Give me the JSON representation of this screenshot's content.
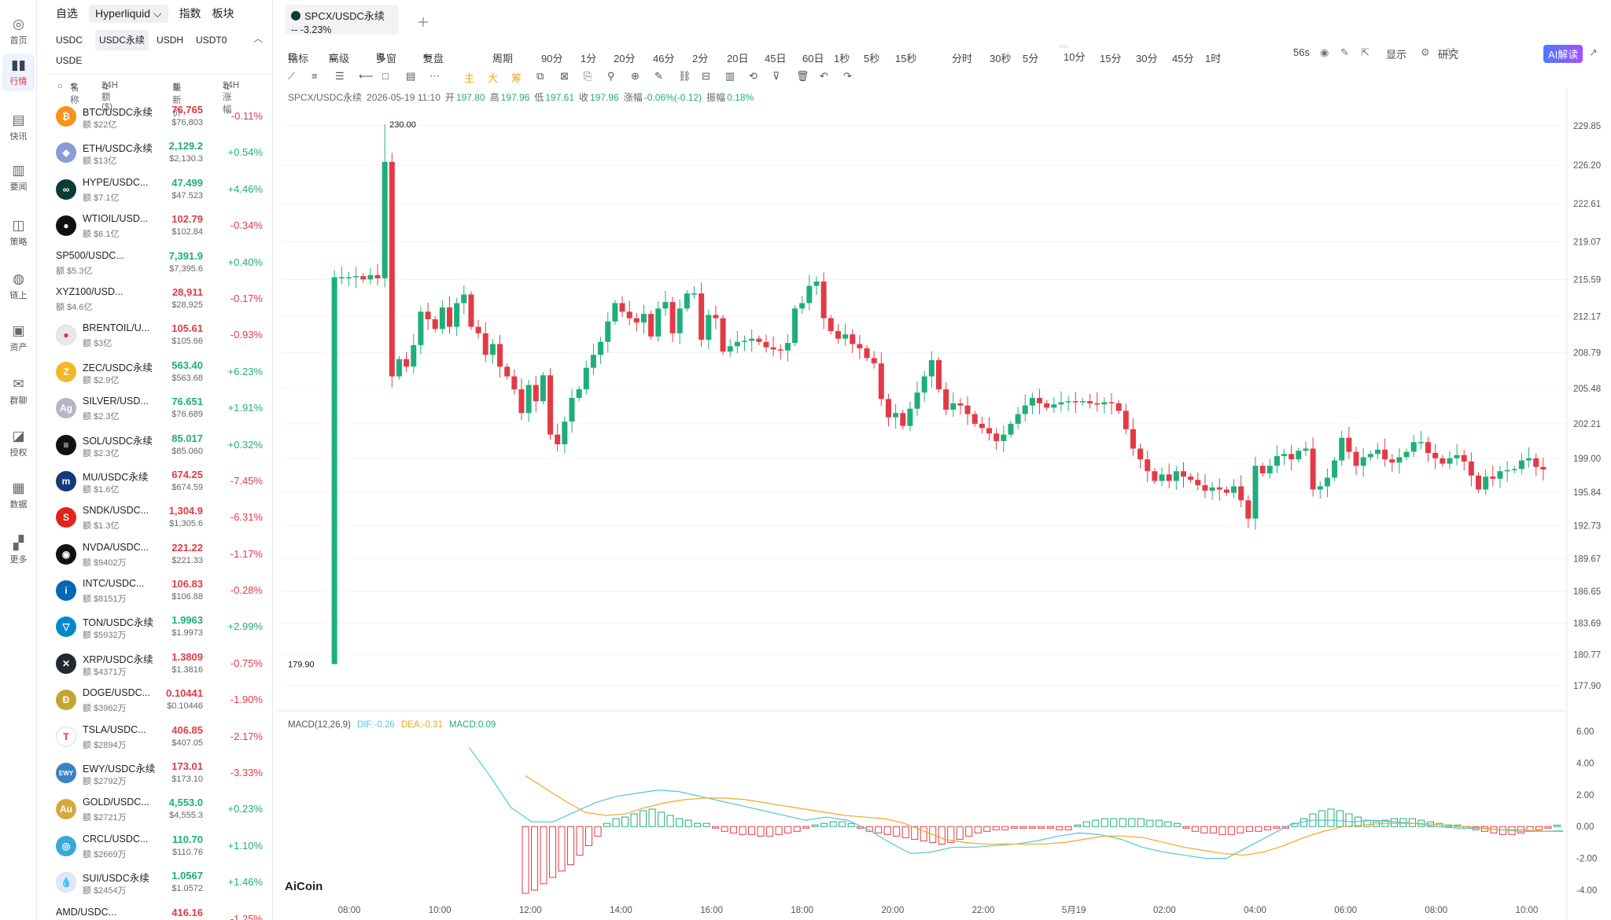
{
  "nav": [
    {
      "icon": "home-icon",
      "label": "首页"
    },
    {
      "icon": "market-icon",
      "label": "行情"
    },
    {
      "icon": "flash-icon",
      "label": "快讯"
    },
    {
      "icon": "news-icon",
      "label": "要闻"
    },
    {
      "icon": "strategy-icon",
      "label": "策略"
    },
    {
      "icon": "onchain-icon",
      "label": "链上"
    },
    {
      "icon": "wallet-icon",
      "label": "资产"
    },
    {
      "icon": "chat-icon",
      "label": "群聊"
    },
    {
      "icon": "auth-icon",
      "label": "授权"
    },
    {
      "icon": "data-icon",
      "label": "数据"
    },
    {
      "icon": "more-icon",
      "label": "更多"
    }
  ],
  "watchlist": {
    "tabs": [
      "自选",
      "Hyperliquid",
      "指数",
      "板块"
    ],
    "sub_tabs": [
      "USDC",
      "USDC永续",
      "USDH",
      "USDT0",
      "USDE"
    ],
    "headers": {
      "name": "名称",
      "vol": "24H额($)",
      "price": "最新价",
      "change": "24H涨幅"
    },
    "rows": [
      {
        "name": "BTC/USDC永续",
        "vol": "额 $22亿",
        "price": "76,765",
        "usd": "$76,803",
        "chg": "-0.11%",
        "color": "#f7931a",
        "glyph": "₿"
      },
      {
        "name": "ETH/USDC永续",
        "vol": "额 $13亿",
        "price": "2,129.2",
        "usd": "$2,130.3",
        "chg": "+0.54%",
        "color": "#8a9bd6",
        "glyph": "◆"
      },
      {
        "name": "HYPE/USDC...",
        "vol": "额 $7.1亿",
        "price": "47.499",
        "usd": "$47.523",
        "chg": "+4.46%",
        "color": "#0c3b35",
        "glyph": "∞"
      },
      {
        "name": "WTIOIL/USD...",
        "vol": "额 $6.1亿",
        "price": "102.79",
        "usd": "$102.84",
        "chg": "-0.34%",
        "color": "#111",
        "glyph": "●"
      },
      {
        "name": "SP500/USDC...",
        "vol": "额 $5.3亿",
        "price": "7,391.9",
        "usd": "$7,395.6",
        "chg": "+0.40%",
        "color": "",
        "glyph": ""
      },
      {
        "name": "XYZ100/USD...",
        "vol": "额 $4.6亿",
        "price": "28,911",
        "usd": "$28,925",
        "chg": "-0.17%",
        "color": "",
        "glyph": ""
      },
      {
        "name": "BRENTOIL/U...",
        "vol": "额 $3亿",
        "price": "105.61",
        "usd": "$105.66",
        "chg": "-0.93%",
        "color": "#e8e8e8",
        "glyph": "●"
      },
      {
        "name": "ZEC/USDC永续",
        "vol": "额 $2.9亿",
        "price": "563.40",
        "usd": "$563.68",
        "chg": "+6.23%",
        "color": "#f4b728",
        "glyph": "Z"
      },
      {
        "name": "SILVER/USD...",
        "vol": "额 $2.3亿",
        "price": "76.651",
        "usd": "$76.689",
        "chg": "+1.91%",
        "color": "#b5b5c8",
        "glyph": "Ag"
      },
      {
        "name": "SOL/USDC永续",
        "vol": "额 $2.3亿",
        "price": "85.017",
        "usd": "$85.060",
        "chg": "+0.32%",
        "color": "#111",
        "glyph": "≡"
      },
      {
        "name": "MU/USDC永续",
        "vol": "额 $1.6亿",
        "price": "674.25",
        "usd": "$674.59",
        "chg": "-7.45%",
        "color": "#143a7b",
        "glyph": "m"
      },
      {
        "name": "SNDK/USDC...",
        "vol": "额 $1.3亿",
        "price": "1,304.9",
        "usd": "$1,305.6",
        "chg": "-6.31%",
        "color": "#e2231a",
        "glyph": "S"
      },
      {
        "name": "NVDA/USDC...",
        "vol": "额 $9402万",
        "price": "221.22",
        "usd": "$221.33",
        "chg": "-1.17%",
        "color": "#111",
        "glyph": "◉"
      },
      {
        "name": "INTC/USDC...",
        "vol": "额 $8151万",
        "price": "106.83",
        "usd": "$106.88",
        "chg": "-0.28%",
        "color": "#0068b5",
        "glyph": "i"
      },
      {
        "name": "TON/USDC永续",
        "vol": "额 $5932万",
        "price": "1.9963",
        "usd": "$1.9973",
        "chg": "+2.99%",
        "color": "#0088cc",
        "glyph": "▽"
      },
      {
        "name": "XRP/USDC永续",
        "vol": "额 $4371万",
        "price": "1.3809",
        "usd": "$1.3816",
        "chg": "-0.75%",
        "color": "#23292f",
        "glyph": "✕"
      },
      {
        "name": "DOGE/USDC...",
        "vol": "额 $3962万",
        "price": "0.10441",
        "usd": "$0.10446",
        "chg": "-1.90%",
        "color": "#c2a633",
        "glyph": "Ð"
      },
      {
        "name": "TSLA/USDC...",
        "vol": "额 $2894万",
        "price": "406.85",
        "usd": "$407.05",
        "chg": "-2.17%",
        "color": "#fff",
        "glyph": "T"
      },
      {
        "name": "EWY/USDC永续",
        "vol": "额 $2792万",
        "price": "173.01",
        "usd": "$173.10",
        "chg": "-3.33%",
        "color": "#3b82c4",
        "glyph": "EWY"
      },
      {
        "name": "GOLD/USDC...",
        "vol": "额 $2721万",
        "price": "4,553.0",
        "usd": "$4,555.3",
        "chg": "+0.23%",
        "color": "#d4a93c",
        "glyph": "Au"
      },
      {
        "name": "CRCL/USDC...",
        "vol": "额 $2669万",
        "price": "110.70",
        "usd": "$110.76",
        "chg": "+1.10%",
        "color": "#3aa7d8",
        "glyph": "◎"
      },
      {
        "name": "SUI/USDC永续",
        "vol": "额 $2454万",
        "price": "1.0567",
        "usd": "$1.0572",
        "chg": "+1.46%",
        "color": "#dbeafe",
        "glyph": "💧"
      },
      {
        "name": "AMD/USDC...",
        "vol": "",
        "price": "416.16",
        "usd": "",
        "chg": "-1.25%",
        "color": "",
        "glyph": ""
      }
    ]
  },
  "tab": {
    "symbol": "SPCX/USDC永续",
    "sub": "-- -3.23%"
  },
  "toolbar": {
    "items": [
      "指标",
      "高级",
      "多窗",
      "复盘",
      "周期",
      "90分",
      "1分",
      "20分",
      "46分",
      "2分",
      "20日",
      "45日",
      "60日",
      "1秒",
      "5秒",
      "15秒",
      "分时",
      "30秒",
      "5分",
      "10分",
      "15分",
      "30分",
      "45分",
      "1时"
    ],
    "selected": "10分",
    "countdown": "56s",
    "display": "显示",
    "research": "研究",
    "ai": "AI解读"
  },
  "drawing_tools": [
    "主",
    "大",
    "筹"
  ],
  "legend": {
    "symbol": "SPCX/USDC永续",
    "time": "2026-05-19 11:10",
    "open_label": "开",
    "open": "197.80",
    "high_label": "高",
    "high": "197.96",
    "low_label": "低",
    "low": "197.61",
    "close_label": "收",
    "close": "197.96",
    "chg_label": "涨幅",
    "chg": "-0.06%(-0.12)",
    "amp_label": "振幅",
    "amp": "0.18%"
  },
  "macd": {
    "name": "MACD(12,26,9)",
    "dif": "DIF:-0.26",
    "dea": "DEA:-0.31",
    "macd": "MACD:0.09"
  },
  "brand": "AiCoin",
  "colors": {
    "up": "#1fae7a",
    "down": "#e23b46",
    "dif": "#4fc8d8",
    "dea": "#f5a623"
  },
  "chart_data": {
    "type": "candlestick",
    "price_axis": [
      "229.85",
      "226.20",
      "222.61",
      "219.07",
      "215.59",
      "212.17",
      "208.79",
      "205.48",
      "202.21",
      "199.00",
      "195.84",
      "192.73",
      "189.67",
      "186.65",
      "183.69",
      "180.77",
      "177.90"
    ],
    "ylim": [
      177.9,
      229.85
    ],
    "macd_axis": [
      "6.00",
      "4.00",
      "2.00",
      "0.00",
      "-2.00",
      "-4.00"
    ],
    "macd_ylim": [
      -4,
      6
    ],
    "time_axis": [
      "08:00",
      "10:00",
      "12:00",
      "14:00",
      "16:00",
      "18:00",
      "20:00",
      "22:00",
      "5月19",
      "02:00",
      "04:00",
      "06:00",
      "08:00",
      "10:00"
    ],
    "markers": {
      "high": "230.00",
      "low": "179.90"
    },
    "closes": [
      179.9,
      215.8,
      215.8,
      215.8,
      215.9,
      215.6,
      216.0,
      215.7,
      226.5,
      206.6,
      208.2,
      207.5,
      209.5,
      212.6,
      211.9,
      211.0,
      213.0,
      211.2,
      213.4,
      214.2,
      211.2,
      210.6,
      208.6,
      209.6,
      207.5,
      206.6,
      205.4,
      203.2,
      205.8,
      204.3,
      206.7,
      201.2,
      200.3,
      202.4,
      204.6,
      205.4,
      207.4,
      208.6,
      209.8,
      211.7,
      213.4,
      212.6,
      212.0,
      211.6,
      212.4,
      210.3,
      212.9,
      213.5,
      210.6,
      212.9,
      214.3,
      214.3,
      210.0,
      212.3,
      212.0,
      208.9,
      209.4,
      209.8,
      209.9,
      210.1,
      209.8,
      209.3,
      209.1,
      209.0,
      209.7,
      212.9,
      213.4,
      215.0,
      215.4,
      212.0,
      210.8,
      210.1,
      210.5,
      209.6,
      209.2,
      208.3,
      207.8,
      204.5,
      202.8,
      203.2,
      202.0,
      203.6,
      205.1,
      206.6,
      208.1,
      205.4,
      203.5,
      204.1,
      203.9,
      203.1,
      202.2,
      201.8,
      201.3,
      200.6,
      201.2,
      202.2,
      203.1,
      203.9,
      204.6,
      204.1,
      203.7,
      204.0,
      204.2,
      204.3,
      204.2,
      204.3,
      204.1,
      204.0,
      204.2,
      204.1,
      203.4,
      201.7,
      199.9,
      198.9,
      197.8,
      196.9,
      197.5,
      196.9,
      197.8,
      197.3,
      197.0,
      196.5,
      196.0,
      196.3,
      196.1,
      195.8,
      196.4,
      195.1,
      193.4,
      198.3,
      197.6,
      198.3,
      199.2,
      199.4,
      198.9,
      199.7,
      199.9,
      196.1,
      196.4,
      197.2,
      198.8,
      200.9,
      199.6,
      198.3,
      199.1,
      199.4,
      199.8,
      198.9,
      198.6,
      199.1,
      199.6,
      200.5,
      200.5,
      199.5,
      199.0,
      198.5,
      199.0,
      199.3,
      198.7,
      197.4,
      196.1,
      197.3,
      197.1,
      197.8,
      197.9,
      198.0,
      198.8,
      199.0,
      198.2,
      197.96
    ],
    "macd_hist": [
      -4.2,
      -4.0,
      -3.6,
      -3.2,
      -2.8,
      -2.4,
      -1.8,
      -1.2,
      -0.6,
      0.2,
      0.5,
      0.6,
      0.8,
      1.0,
      1.1,
      0.9,
      0.7,
      0.5,
      0.4,
      0.2,
      0.2,
      -0.1,
      -0.3,
      -0.4,
      -0.5,
      -0.5,
      -0.6,
      -0.6,
      -0.5,
      -0.4,
      -0.3,
      -0.1,
      0.1,
      0.2,
      0.3,
      0.3,
      0.2,
      -0.1,
      -0.3,
      -0.4,
      -0.5,
      -0.6,
      -0.7,
      -0.8,
      -0.9,
      -1.0,
      -1.1,
      -1.0,
      -0.8,
      -0.6,
      -0.4,
      -0.3,
      -0.2,
      -0.2,
      -0.1,
      -0.1,
      -0.1,
      -0.1,
      -0.1,
      -0.2,
      -0.2,
      0.1,
      0.3,
      0.4,
      0.5,
      0.5,
      0.5,
      0.5,
      0.5,
      0.4,
      0.4,
      0.3,
      0.2,
      -0.1,
      -0.3,
      -0.4,
      -0.4,
      -0.5,
      -0.5,
      -0.4,
      -0.3,
      -0.3,
      -0.2,
      -0.1,
      -0.1,
      0.2,
      0.5,
      0.8,
      1.0,
      1.1,
      1.0,
      0.8,
      0.6,
      0.4,
      0.3,
      0.4,
      0.5,
      0.5,
      0.5,
      0.4,
      0.3,
      0.2,
      0.1,
      0.1,
      -0.1,
      -0.2,
      -0.3,
      -0.4,
      -0.5,
      -0.5,
      -0.4,
      -0.3,
      -0.2,
      -0.1,
      0.09
    ],
    "dif": [
      5.0,
      3.2,
      1.2,
      0.3,
      0.3,
      0.9,
      1.5,
      1.9,
      2.1,
      2.3,
      2.2,
      1.9,
      1.6,
      1.3,
      1.0,
      0.7,
      0.4,
      0.6,
      0.4,
      -0.2,
      -1.0,
      -1.7,
      -1.6,
      -1.3,
      -1.3,
      -1.2,
      -1.1,
      -0.9,
      -0.6,
      -0.4,
      -0.5,
      -0.8,
      -1.3,
      -1.6,
      -1.8,
      -2.0,
      -2.0,
      -1.3,
      -0.6,
      0.1,
      0.4,
      0.4,
      0.3,
      0.4,
      0.3,
      0.2,
      0.0,
      -0.1,
      -0.1,
      -0.2,
      -0.3,
      -0.3,
      -0.26
    ],
    "dea": [
      3.2,
      2.4,
      1.6,
      0.9,
      0.7,
      0.8,
      1.2,
      1.5,
      1.7,
      1.8,
      1.8,
      1.7,
      1.5,
      1.3,
      1.1,
      0.9,
      0.7,
      0.6,
      0.5,
      0.2,
      -0.3,
      -0.8,
      -1.0,
      -1.1,
      -1.1,
      -1.1,
      -1.1,
      -1.0,
      -0.8,
      -0.6,
      -0.6,
      -0.7,
      -1.0,
      -1.3,
      -1.5,
      -1.7,
      -1.8,
      -1.6,
      -1.2,
      -0.7,
      -0.3,
      0.0,
      0.1,
      0.2,
      0.2,
      0.2,
      0.1,
      0.0,
      -0.1,
      -0.2,
      -0.2,
      -0.3,
      -0.31
    ]
  }
}
